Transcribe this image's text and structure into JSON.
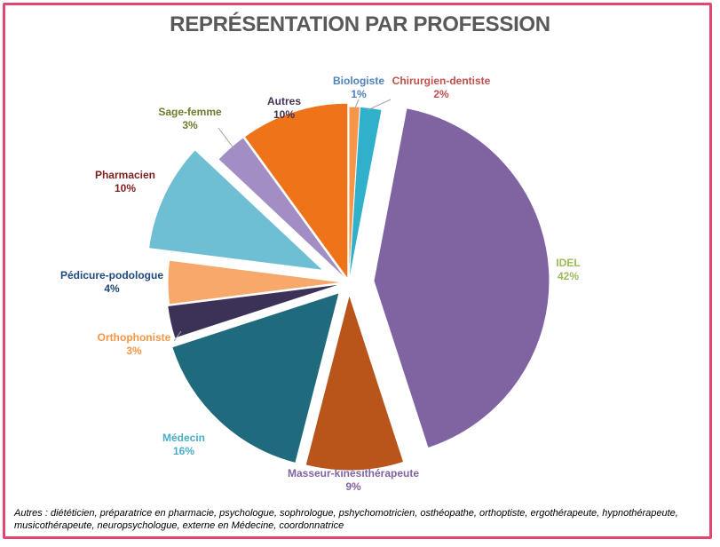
{
  "chart_data": {
    "type": "pie",
    "title": "REPRÉSENTATION PAR PROFESSION",
    "slices": [
      {
        "label": "Biologiste",
        "value": 1,
        "value_label": "1%",
        "color": "#f79646",
        "label_color": "#4f81bd"
      },
      {
        "label": "Chirurgien-dentiste",
        "value": 2,
        "value_label": "2%",
        "color": "#31b0cc",
        "label_color": "#c0504d"
      },
      {
        "label": "IDEL",
        "value": 42,
        "value_label": "42%",
        "color": "#8064a2",
        "label_color": "#9bbb59"
      },
      {
        "label": "Masseur-kinésithérapeute",
        "value": 9,
        "value_label": "9%",
        "color": "#b9541a",
        "label_color": "#8064a2"
      },
      {
        "label": "Médecin",
        "value": 16,
        "value_label": "16%",
        "color": "#1f6a7c",
        "label_color": "#4bacc6"
      },
      {
        "label": "Orthophoniste",
        "value": 3,
        "value_label": "3%",
        "color": "#3c3257",
        "label_color": "#f79646"
      },
      {
        "label": "Pédicure-podologue",
        "value": 4,
        "value_label": "4%",
        "color": "#f7a86a",
        "label_color": "#1f497d"
      },
      {
        "label": "Pharmacien",
        "value": 10,
        "value_label": "10%",
        "color": "#6fbfd4",
        "label_color": "#7b1f1f"
      },
      {
        "label": "Sage-femme",
        "value": 3,
        "value_label": "3%",
        "color": "#a28dc4",
        "label_color": "#6e7b2e"
      },
      {
        "label": "Autres",
        "value": 10,
        "value_label": "10%",
        "color": "#ef7318",
        "label_color": "#403152"
      }
    ],
    "legend": "none"
  },
  "footnote": "Autres : diététicien, préparatrice en pharmacie, psychologue, sophrologue, pshychomotricien, osthéopathe, orthoptiste, ergothérapeute, hypnothérapeute, musicothérapeute, neuropsychologue, externe en Médecine, coordonnatrice"
}
